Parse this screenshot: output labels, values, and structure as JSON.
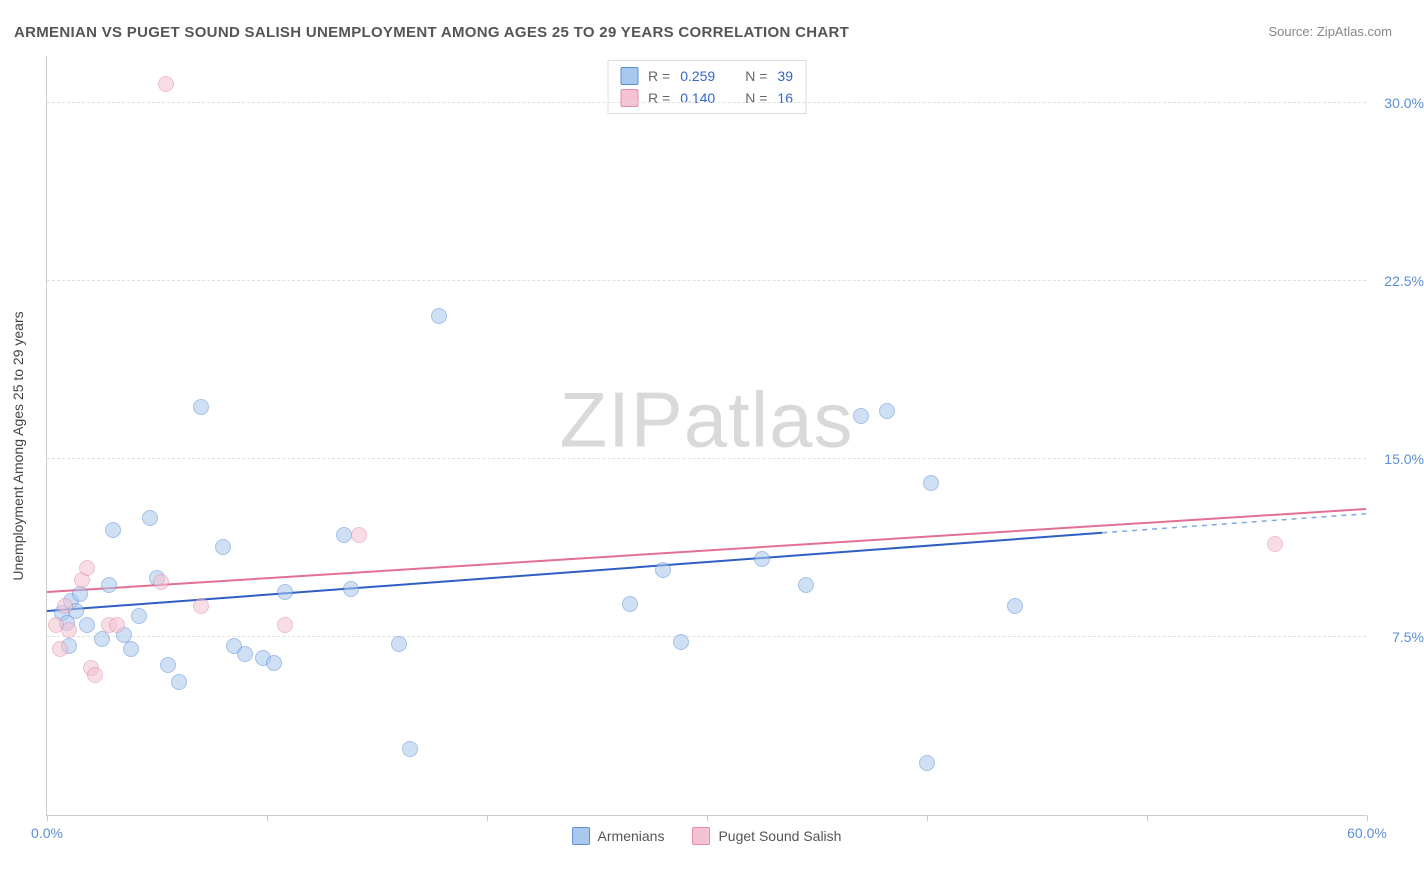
{
  "title": "ARMENIAN VS PUGET SOUND SALISH UNEMPLOYMENT AMONG AGES 25 TO 29 YEARS CORRELATION CHART",
  "source": "Source: ZipAtlas.com",
  "y_axis_title": "Unemployment Among Ages 25 to 29 years",
  "watermark_a": "ZIP",
  "watermark_b": "atlas",
  "chart": {
    "type": "scatter",
    "xlim": [
      0,
      60
    ],
    "ylim": [
      0,
      32
    ],
    "x_ticks": [
      0,
      10,
      20,
      30,
      40,
      50,
      60
    ],
    "x_tick_labels": {
      "0": "0.0%",
      "60": "60.0%"
    },
    "y_grid": [
      7.5,
      15.0,
      22.5,
      30.0
    ],
    "y_grid_labels": [
      "7.5%",
      "15.0%",
      "22.5%",
      "30.0%"
    ],
    "background_color": "#ffffff",
    "grid_color": "#e0e0e0",
    "axis_color": "#cccccc",
    "tick_label_color": "#5b8fd6",
    "point_radius": 8,
    "point_opacity": 0.55,
    "series": [
      {
        "name": "Armenians",
        "fill": "#a8c8ee",
        "stroke": "#5b8fd6",
        "trend_color": "#2f5fc4",
        "trend_dash_color": "#7fa8e0",
        "R": "0.259",
        "N": "39",
        "trend": {
          "x1": 0,
          "y1": 8.6,
          "x2_solid": 48,
          "y2_solid": 11.9,
          "x2": 60,
          "y2": 12.7
        },
        "points": [
          [
            0.7,
            8.5
          ],
          [
            0.9,
            8.1
          ],
          [
            1.1,
            9.0
          ],
          [
            1.3,
            8.6
          ],
          [
            1.5,
            9.3
          ],
          [
            1.8,
            8.0
          ],
          [
            1.0,
            7.1
          ],
          [
            2.5,
            7.4
          ],
          [
            2.8,
            9.7
          ],
          [
            3.0,
            12.0
          ],
          [
            3.5,
            7.6
          ],
          [
            3.8,
            7.0
          ],
          [
            4.2,
            8.4
          ],
          [
            4.7,
            12.5
          ],
          [
            5.0,
            10.0
          ],
          [
            5.5,
            6.3
          ],
          [
            6.0,
            5.6
          ],
          [
            7.0,
            17.2
          ],
          [
            8.0,
            11.3
          ],
          [
            8.5,
            7.1
          ],
          [
            9.0,
            6.8
          ],
          [
            9.8,
            6.6
          ],
          [
            10.3,
            6.4
          ],
          [
            10.8,
            9.4
          ],
          [
            13.5,
            11.8
          ],
          [
            13.8,
            9.5
          ],
          [
            16.0,
            7.2
          ],
          [
            17.8,
            21.0
          ],
          [
            16.5,
            2.8
          ],
          [
            26.5,
            8.9
          ],
          [
            28.0,
            10.3
          ],
          [
            28.8,
            7.3
          ],
          [
            32.5,
            10.8
          ],
          [
            34.5,
            9.7
          ],
          [
            37.0,
            16.8
          ],
          [
            38.2,
            17.0
          ],
          [
            40.2,
            14.0
          ],
          [
            40.0,
            2.2
          ],
          [
            44.0,
            8.8
          ]
        ]
      },
      {
        "name": "Puget Sound Salish",
        "fill": "#f4c2d1",
        "stroke": "#e08fa8",
        "trend_color": "#e36f93",
        "R": "0.140",
        "N": "16",
        "trend": {
          "x1": 0,
          "y1": 9.4,
          "x2_solid": 60,
          "y2_solid": 12.9,
          "x2": 60,
          "y2": 12.9
        },
        "points": [
          [
            0.4,
            8.0
          ],
          [
            0.6,
            7.0
          ],
          [
            0.8,
            8.8
          ],
          [
            1.0,
            7.8
          ],
          [
            1.6,
            9.9
          ],
          [
            1.8,
            10.4
          ],
          [
            2.0,
            6.2
          ],
          [
            2.2,
            5.9
          ],
          [
            2.8,
            8.0
          ],
          [
            3.2,
            8.0
          ],
          [
            5.2,
            9.8
          ],
          [
            5.4,
            30.8
          ],
          [
            7.0,
            8.8
          ],
          [
            10.8,
            8.0
          ],
          [
            14.2,
            11.8
          ],
          [
            55.8,
            11.4
          ]
        ]
      }
    ]
  },
  "legend_labels": {
    "R_prefix": "R =",
    "N_prefix": "N ="
  }
}
